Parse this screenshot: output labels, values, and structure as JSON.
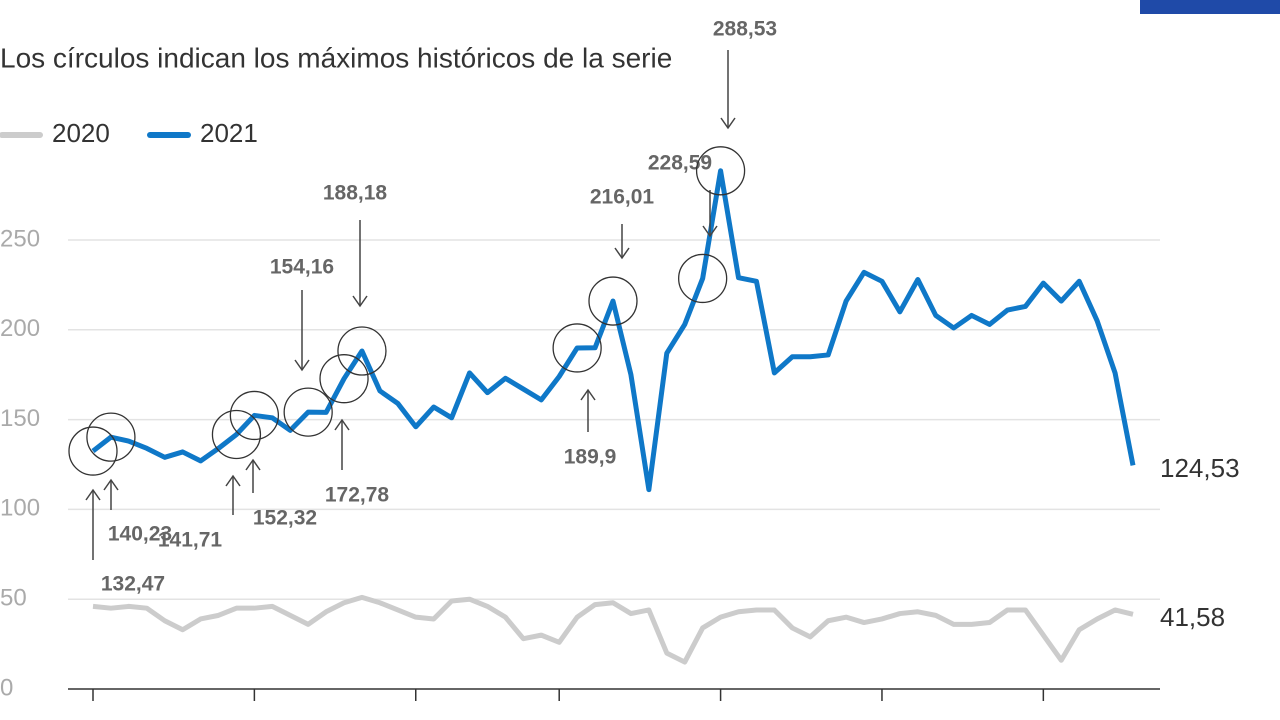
{
  "chart_data": {
    "type": "line",
    "subtitle": "Los círculos indican los máximos históricos de la serie",
    "x": [
      0,
      1,
      2,
      3,
      4,
      5,
      6,
      7,
      8,
      9,
      10,
      11,
      12,
      13,
      14,
      15,
      16,
      17,
      18,
      19,
      20,
      21,
      22,
      23,
      24,
      25,
      26,
      27,
      28,
      29,
      30,
      31,
      32,
      33,
      34,
      35,
      36,
      37,
      38,
      39,
      40,
      41,
      42,
      43,
      44,
      45,
      46,
      47,
      48,
      49,
      50,
      51,
      52,
      53,
      54,
      55,
      56,
      57,
      58
    ],
    "xlim": [
      0,
      58
    ],
    "xticks": [
      0,
      9,
      18,
      26,
      35,
      44,
      53
    ],
    "ylim": [
      0,
      250
    ],
    "yticks": [
      0,
      50,
      100,
      150,
      200,
      250
    ],
    "grid": true,
    "series": [
      {
        "name": "2020",
        "color": "#cccccc",
        "values": [
          46,
          45,
          46,
          45,
          38,
          33,
          39,
          41,
          45,
          45,
          46,
          41,
          36,
          43,
          48,
          51,
          48,
          44,
          40,
          39,
          49,
          50,
          46,
          40,
          28,
          30,
          26,
          40,
          47,
          48,
          42,
          44,
          20,
          15,
          34,
          40,
          43,
          44,
          44,
          34,
          29,
          38,
          40,
          37,
          39,
          42,
          43,
          41,
          36,
          36,
          37,
          44,
          44,
          30,
          16,
          33,
          39,
          44,
          41.58
        ],
        "value_labels": [
          null,
          null,
          null,
          null,
          null,
          null,
          null,
          null,
          null,
          null,
          null,
          null,
          null,
          null,
          null,
          null,
          null,
          null,
          null,
          null,
          null,
          null,
          null,
          null,
          null,
          null,
          null,
          null,
          null,
          null,
          null,
          null,
          null,
          null,
          null,
          null,
          null,
          null,
          null,
          null,
          null,
          null,
          null,
          null,
          null,
          null,
          null,
          null,
          null,
          null,
          null,
          null,
          null,
          null,
          null,
          null,
          null,
          null,
          "41,58"
        ]
      },
      {
        "name": "2021",
        "color": "#0f78c8",
        "values": [
          132.47,
          140.23,
          138,
          134,
          129,
          132,
          127,
          134,
          141.71,
          152.32,
          151,
          144,
          154.16,
          154,
          172.78,
          188.18,
          166,
          159,
          146,
          157,
          151,
          176,
          165,
          173,
          167,
          161,
          174,
          189.9,
          190,
          216.01,
          175,
          111,
          187,
          203,
          228.59,
          288.53,
          229,
          227,
          176,
          185,
          185,
          186,
          216,
          232,
          227,
          210,
          228,
          208,
          201,
          208,
          203,
          211,
          213,
          226,
          216,
          227,
          205,
          176,
          124.53
        ],
        "value_labels": [
          "132,47",
          "140,23",
          null,
          null,
          null,
          null,
          null,
          null,
          "141,71",
          "152,32",
          null,
          null,
          "154,16",
          null,
          "172,78",
          "188,18",
          null,
          null,
          null,
          null,
          null,
          null,
          null,
          null,
          null,
          null,
          null,
          "189,9",
          null,
          "216,01",
          null,
          null,
          null,
          null,
          "228,59",
          "288,53",
          null,
          null,
          null,
          null,
          null,
          null,
          null,
          null,
          null,
          null,
          null,
          null,
          null,
          null,
          null,
          null,
          null,
          null,
          null,
          null,
          null,
          null,
          "124,53"
        ]
      }
    ]
  }
}
